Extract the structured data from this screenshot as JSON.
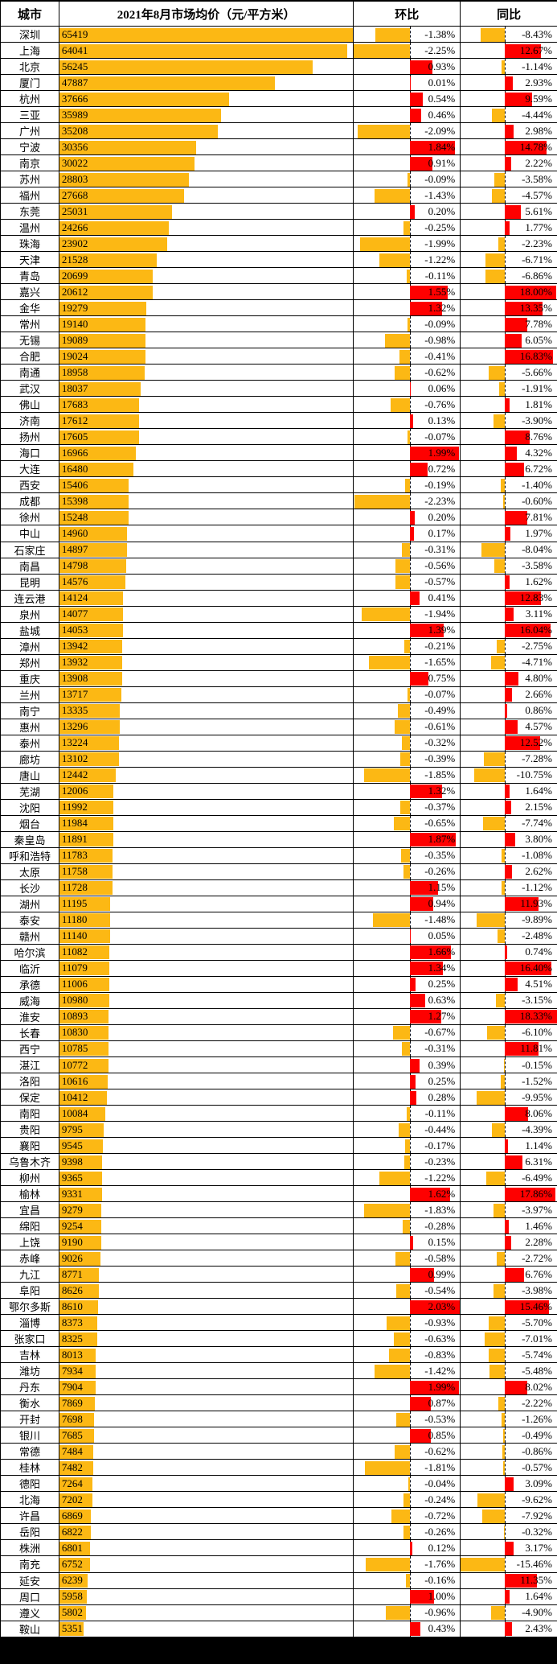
{
  "header": {
    "city": "城市",
    "price": "2021年8月市场均价（元/平方米）",
    "mom": "环比",
    "yoy": "同比"
  },
  "chart_data": {
    "type": "bar",
    "title": "2021年8月市场均价（元/平方米）",
    "columns": [
      "城市",
      "2021年8月市场均价（元/平方米）",
      "环比",
      "同比"
    ],
    "price_axis": {
      "min": 0,
      "max": 65419
    },
    "mom_axis_range_pct": [
      -2.25,
      2.03
    ],
    "yoy_axis_range_pct": [
      -15.46,
      18.33
    ],
    "colors": {
      "price_bar": "#FCB814",
      "negative_bar": "#FCB814",
      "positive_bar": "#FE0000",
      "grid": "#000000",
      "background": "#FFFFFF"
    },
    "rows": [
      {
        "city": "深圳",
        "price": 65419,
        "mom_pct": -1.38,
        "yoy_pct": -8.43
      },
      {
        "city": "上海",
        "price": 64041,
        "mom_pct": -2.25,
        "yoy_pct": 12.67
      },
      {
        "city": "北京",
        "price": 56245,
        "mom_pct": 0.93,
        "yoy_pct": -1.14
      },
      {
        "city": "厦门",
        "price": 47887,
        "mom_pct": 0.01,
        "yoy_pct": 2.93
      },
      {
        "city": "杭州",
        "price": 37666,
        "mom_pct": 0.54,
        "yoy_pct": 9.59
      },
      {
        "city": "三亚",
        "price": 35989,
        "mom_pct": 0.46,
        "yoy_pct": -4.44
      },
      {
        "city": "广州",
        "price": 35208,
        "mom_pct": -2.09,
        "yoy_pct": 2.98
      },
      {
        "city": "宁波",
        "price": 30356,
        "mom_pct": 1.84,
        "yoy_pct": 14.78
      },
      {
        "city": "南京",
        "price": 30022,
        "mom_pct": 0.91,
        "yoy_pct": 2.22
      },
      {
        "city": "苏州",
        "price": 28803,
        "mom_pct": -0.09,
        "yoy_pct": -3.58
      },
      {
        "city": "福州",
        "price": 27668,
        "mom_pct": -1.43,
        "yoy_pct": -4.57
      },
      {
        "city": "东莞",
        "price": 25031,
        "mom_pct": 0.2,
        "yoy_pct": 5.61
      },
      {
        "city": "温州",
        "price": 24266,
        "mom_pct": -0.25,
        "yoy_pct": 1.77
      },
      {
        "city": "珠海",
        "price": 23902,
        "mom_pct": -1.99,
        "yoy_pct": -2.23
      },
      {
        "city": "天津",
        "price": 21528,
        "mom_pct": -1.22,
        "yoy_pct": -6.71
      },
      {
        "city": "青岛",
        "price": 20699,
        "mom_pct": -0.11,
        "yoy_pct": -6.86
      },
      {
        "city": "嘉兴",
        "price": 20612,
        "mom_pct": 1.55,
        "yoy_pct": 18.0
      },
      {
        "city": "金华",
        "price": 19279,
        "mom_pct": 1.32,
        "yoy_pct": 13.35
      },
      {
        "city": "常州",
        "price": 19140,
        "mom_pct": -0.09,
        "yoy_pct": 7.78
      },
      {
        "city": "无锡",
        "price": 19089,
        "mom_pct": -0.98,
        "yoy_pct": 6.05
      },
      {
        "city": "合肥",
        "price": 19024,
        "mom_pct": -0.41,
        "yoy_pct": 16.83
      },
      {
        "city": "南通",
        "price": 18958,
        "mom_pct": -0.62,
        "yoy_pct": -5.66
      },
      {
        "city": "武汉",
        "price": 18037,
        "mom_pct": 0.06,
        "yoy_pct": -1.91
      },
      {
        "city": "佛山",
        "price": 17683,
        "mom_pct": -0.76,
        "yoy_pct": 1.81
      },
      {
        "city": "济南",
        "price": 17612,
        "mom_pct": 0.13,
        "yoy_pct": -3.9
      },
      {
        "city": "扬州",
        "price": 17605,
        "mom_pct": -0.07,
        "yoy_pct": 8.76
      },
      {
        "city": "海口",
        "price": 16966,
        "mom_pct": 1.99,
        "yoy_pct": 4.32
      },
      {
        "city": "大连",
        "price": 16480,
        "mom_pct": 0.72,
        "yoy_pct": 6.72
      },
      {
        "city": "西安",
        "price": 15406,
        "mom_pct": -0.19,
        "yoy_pct": -1.4
      },
      {
        "city": "成都",
        "price": 15398,
        "mom_pct": -2.23,
        "yoy_pct": -0.6
      },
      {
        "city": "徐州",
        "price": 15248,
        "mom_pct": 0.2,
        "yoy_pct": 7.81
      },
      {
        "city": "中山",
        "price": 14960,
        "mom_pct": 0.17,
        "yoy_pct": 1.97
      },
      {
        "city": "石家庄",
        "price": 14897,
        "mom_pct": -0.31,
        "yoy_pct": -8.04
      },
      {
        "city": "南昌",
        "price": 14798,
        "mom_pct": -0.56,
        "yoy_pct": -3.58
      },
      {
        "city": "昆明",
        "price": 14576,
        "mom_pct": -0.57,
        "yoy_pct": 1.62
      },
      {
        "city": "连云港",
        "price": 14124,
        "mom_pct": 0.41,
        "yoy_pct": 12.83
      },
      {
        "city": "泉州",
        "price": 14077,
        "mom_pct": -1.94,
        "yoy_pct": 3.11
      },
      {
        "city": "盐城",
        "price": 14053,
        "mom_pct": 1.39,
        "yoy_pct": 16.04
      },
      {
        "city": "漳州",
        "price": 13942,
        "mom_pct": -0.21,
        "yoy_pct": -2.75
      },
      {
        "city": "郑州",
        "price": 13932,
        "mom_pct": -1.65,
        "yoy_pct": -4.71
      },
      {
        "city": "重庆",
        "price": 13908,
        "mom_pct": 0.75,
        "yoy_pct": 4.8
      },
      {
        "city": "兰州",
        "price": 13717,
        "mom_pct": -0.07,
        "yoy_pct": 2.66
      },
      {
        "city": "南宁",
        "price": 13335,
        "mom_pct": -0.49,
        "yoy_pct": 0.86
      },
      {
        "city": "惠州",
        "price": 13296,
        "mom_pct": -0.61,
        "yoy_pct": 4.57
      },
      {
        "city": "泰州",
        "price": 13224,
        "mom_pct": -0.32,
        "yoy_pct": 12.52
      },
      {
        "city": "廊坊",
        "price": 13102,
        "mom_pct": -0.39,
        "yoy_pct": -7.28
      },
      {
        "city": "唐山",
        "price": 12442,
        "mom_pct": -1.85,
        "yoy_pct": -10.75
      },
      {
        "city": "芜湖",
        "price": 12006,
        "mom_pct": 1.32,
        "yoy_pct": 1.64
      },
      {
        "city": "沈阳",
        "price": 11992,
        "mom_pct": -0.37,
        "yoy_pct": 2.15
      },
      {
        "city": "烟台",
        "price": 11984,
        "mom_pct": -0.65,
        "yoy_pct": -7.74
      },
      {
        "city": "秦皇岛",
        "price": 11891,
        "mom_pct": 1.87,
        "yoy_pct": 3.8
      },
      {
        "city": "呼和浩特",
        "price": 11783,
        "mom_pct": -0.35,
        "yoy_pct": -1.08
      },
      {
        "city": "太原",
        "price": 11758,
        "mom_pct": -0.26,
        "yoy_pct": 2.62
      },
      {
        "city": "长沙",
        "price": 11728,
        "mom_pct": 1.15,
        "yoy_pct": -1.12
      },
      {
        "city": "湖州",
        "price": 11195,
        "mom_pct": 0.94,
        "yoy_pct": 11.93
      },
      {
        "city": "泰安",
        "price": 11180,
        "mom_pct": -1.48,
        "yoy_pct": -9.89
      },
      {
        "city": "赣州",
        "price": 11140,
        "mom_pct": 0.05,
        "yoy_pct": -2.48
      },
      {
        "city": "哈尔滨",
        "price": 11082,
        "mom_pct": 1.66,
        "yoy_pct": 0.74
      },
      {
        "city": "临沂",
        "price": 11079,
        "mom_pct": 1.34,
        "yoy_pct": 16.4
      },
      {
        "city": "承德",
        "price": 11006,
        "mom_pct": 0.25,
        "yoy_pct": 4.51
      },
      {
        "city": "威海",
        "price": 10980,
        "mom_pct": 0.63,
        "yoy_pct": -3.15
      },
      {
        "city": "淮安",
        "price": 10893,
        "mom_pct": 1.27,
        "yoy_pct": 18.33
      },
      {
        "city": "长春",
        "price": 10830,
        "mom_pct": -0.67,
        "yoy_pct": -6.1
      },
      {
        "city": "西宁",
        "price": 10785,
        "mom_pct": -0.31,
        "yoy_pct": 11.81
      },
      {
        "city": "湛江",
        "price": 10772,
        "mom_pct": 0.39,
        "yoy_pct": -0.15
      },
      {
        "city": "洛阳",
        "price": 10616,
        "mom_pct": 0.25,
        "yoy_pct": -1.52
      },
      {
        "city": "保定",
        "price": 10412,
        "mom_pct": 0.28,
        "yoy_pct": -9.95
      },
      {
        "city": "南阳",
        "price": 10084,
        "mom_pct": -0.11,
        "yoy_pct": 8.06
      },
      {
        "city": "贵阳",
        "price": 9795,
        "mom_pct": -0.44,
        "yoy_pct": -4.39
      },
      {
        "city": "襄阳",
        "price": 9545,
        "mom_pct": -0.17,
        "yoy_pct": 1.14
      },
      {
        "city": "乌鲁木齐",
        "price": 9398,
        "mom_pct": -0.23,
        "yoy_pct": 6.31
      },
      {
        "city": "柳州",
        "price": 9365,
        "mom_pct": -1.22,
        "yoy_pct": -6.49
      },
      {
        "city": "榆林",
        "price": 9331,
        "mom_pct": 1.62,
        "yoy_pct": 17.86
      },
      {
        "city": "宜昌",
        "price": 9279,
        "mom_pct": -1.83,
        "yoy_pct": -3.97
      },
      {
        "city": "绵阳",
        "price": 9254,
        "mom_pct": -0.28,
        "yoy_pct": 1.46
      },
      {
        "city": "上饶",
        "price": 9190,
        "mom_pct": 0.15,
        "yoy_pct": 2.28
      },
      {
        "city": "赤峰",
        "price": 9026,
        "mom_pct": -0.58,
        "yoy_pct": -2.72
      },
      {
        "city": "九江",
        "price": 8771,
        "mom_pct": 0.99,
        "yoy_pct": 6.76
      },
      {
        "city": "阜阳",
        "price": 8626,
        "mom_pct": -0.54,
        "yoy_pct": -3.98
      },
      {
        "city": "鄂尔多斯",
        "price": 8610,
        "mom_pct": 2.03,
        "yoy_pct": 15.46
      },
      {
        "city": "淄博",
        "price": 8373,
        "mom_pct": -0.93,
        "yoy_pct": -5.7
      },
      {
        "city": "张家口",
        "price": 8325,
        "mom_pct": -0.63,
        "yoy_pct": -7.01
      },
      {
        "city": "吉林",
        "price": 8013,
        "mom_pct": -0.83,
        "yoy_pct": -5.74
      },
      {
        "city": "潍坊",
        "price": 7934,
        "mom_pct": -1.42,
        "yoy_pct": -5.48
      },
      {
        "city": "丹东",
        "price": 7904,
        "mom_pct": 1.99,
        "yoy_pct": 8.02
      },
      {
        "city": "衡水",
        "price": 7869,
        "mom_pct": 0.87,
        "yoy_pct": -2.22
      },
      {
        "city": "开封",
        "price": 7698,
        "mom_pct": -0.53,
        "yoy_pct": -1.26
      },
      {
        "city": "银川",
        "price": 7685,
        "mom_pct": 0.85,
        "yoy_pct": -0.49
      },
      {
        "city": "常德",
        "price": 7484,
        "mom_pct": -0.62,
        "yoy_pct": -0.86
      },
      {
        "city": "桂林",
        "price": 7482,
        "mom_pct": -1.81,
        "yoy_pct": -0.57
      },
      {
        "city": "德阳",
        "price": 7264,
        "mom_pct": -0.04,
        "yoy_pct": 3.09
      },
      {
        "city": "北海",
        "price": 7202,
        "mom_pct": -0.24,
        "yoy_pct": -9.62
      },
      {
        "city": "许昌",
        "price": 6869,
        "mom_pct": -0.72,
        "yoy_pct": -7.92
      },
      {
        "city": "岳阳",
        "price": 6822,
        "mom_pct": -0.26,
        "yoy_pct": -0.32
      },
      {
        "city": "株洲",
        "price": 6801,
        "mom_pct": 0.12,
        "yoy_pct": 3.17
      },
      {
        "city": "南充",
        "price": 6752,
        "mom_pct": -1.76,
        "yoy_pct": -15.46
      },
      {
        "city": "延安",
        "price": 6239,
        "mom_pct": -0.16,
        "yoy_pct": 11.35
      },
      {
        "city": "周口",
        "price": 5958,
        "mom_pct": 1.0,
        "yoy_pct": 1.64
      },
      {
        "city": "遵义",
        "price": 5802,
        "mom_pct": -0.96,
        "yoy_pct": -4.9
      },
      {
        "city": "鞍山",
        "price": 5351,
        "mom_pct": 0.43,
        "yoy_pct": 2.43
      }
    ]
  }
}
